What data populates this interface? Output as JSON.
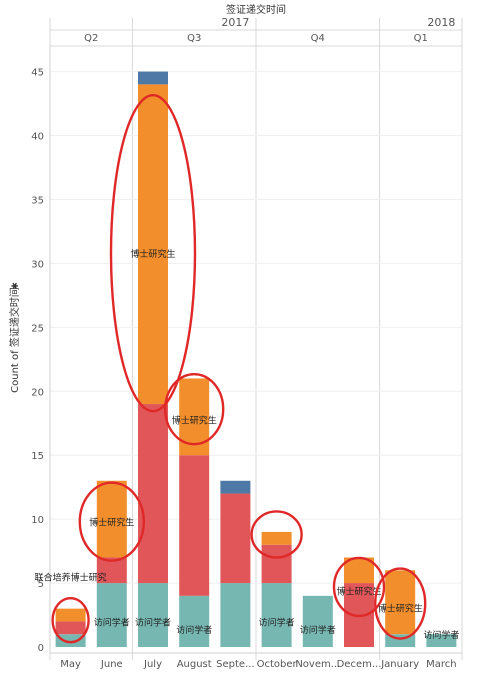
{
  "chart_data": {
    "type": "bar",
    "stacked": true,
    "header": {
      "title": "签证递交时间",
      "years": [
        {
          "label": "2017",
          "from": 0,
          "to": 9
        },
        {
          "label": "2018",
          "from": 9,
          "to": 11
        }
      ],
      "quarters": [
        {
          "label": "Q2",
          "from": 0,
          "to": 2
        },
        {
          "label": "Q3",
          "from": 2,
          "to": 5
        },
        {
          "label": "Q4",
          "from": 5,
          "to": 8
        },
        {
          "label": "Q1",
          "from": 8,
          "to": 11
        }
      ]
    },
    "categories": [
      "May",
      "June",
      "July",
      "August",
      "Septe...",
      "October",
      "Novem...",
      "Decem...",
      "January",
      "March"
    ],
    "ylabel": "Count of 签证递交时间",
    "ylim": [
      0,
      47
    ],
    "yticks": [
      0,
      5,
      10,
      15,
      20,
      25,
      30,
      35,
      40,
      45
    ],
    "grid": true,
    "series": [
      {
        "color": "#76b7b2",
        "values": [
          1,
          5,
          5,
          4,
          5,
          5,
          4,
          0,
          1,
          1
        ]
      },
      {
        "color": "#e15759",
        "values": [
          1,
          2,
          14,
          11,
          7,
          3,
          0,
          5,
          0,
          0
        ]
      },
      {
        "color": "#f28e2b",
        "values": [
          1,
          6,
          25,
          6,
          0,
          1,
          0,
          2,
          5,
          0
        ]
      },
      {
        "color": "#4e79a7",
        "values": [
          0,
          0,
          1,
          0,
          1,
          0,
          0,
          0,
          0,
          0
        ]
      }
    ],
    "annotations": [
      {
        "text": "联合培养博士研究",
        "category": "May",
        "y": 5.5
      },
      {
        "text": "访问学者",
        "category": "June",
        "y": 2
      },
      {
        "text": "访问学者",
        "category": "July",
        "y": 2
      },
      {
        "text": "访问学者",
        "category": "August",
        "y": 1.4
      },
      {
        "text": "访问学者",
        "category": "October",
        "y": 2
      },
      {
        "text": "访问学者",
        "category": "Novem...",
        "y": 1.4
      },
      {
        "text": "访问学者",
        "category": "March",
        "y": 1
      },
      {
        "text": "博士研究生",
        "category": "June",
        "y": 9.8
      },
      {
        "text": "博士研究生",
        "category": "July",
        "y": 30.8
      },
      {
        "text": "博士研究生",
        "category": "August",
        "y": 17.8
      },
      {
        "text": "博士研究生",
        "category": "Decem...",
        "y": 4.4
      },
      {
        "text": "博士研究生",
        "category": "January",
        "y": 3.1
      }
    ],
    "highlights": [
      {
        "category": "May",
        "y": 2.1
      },
      {
        "category": "June",
        "y": 9.8
      },
      {
        "category": "July",
        "y": 30.8
      },
      {
        "category": "August",
        "y": 18.6
      },
      {
        "category": "October",
        "y": 8.8
      },
      {
        "category": "Decem...",
        "y": 4.7
      },
      {
        "category": "January",
        "y": 3.4
      }
    ]
  }
}
